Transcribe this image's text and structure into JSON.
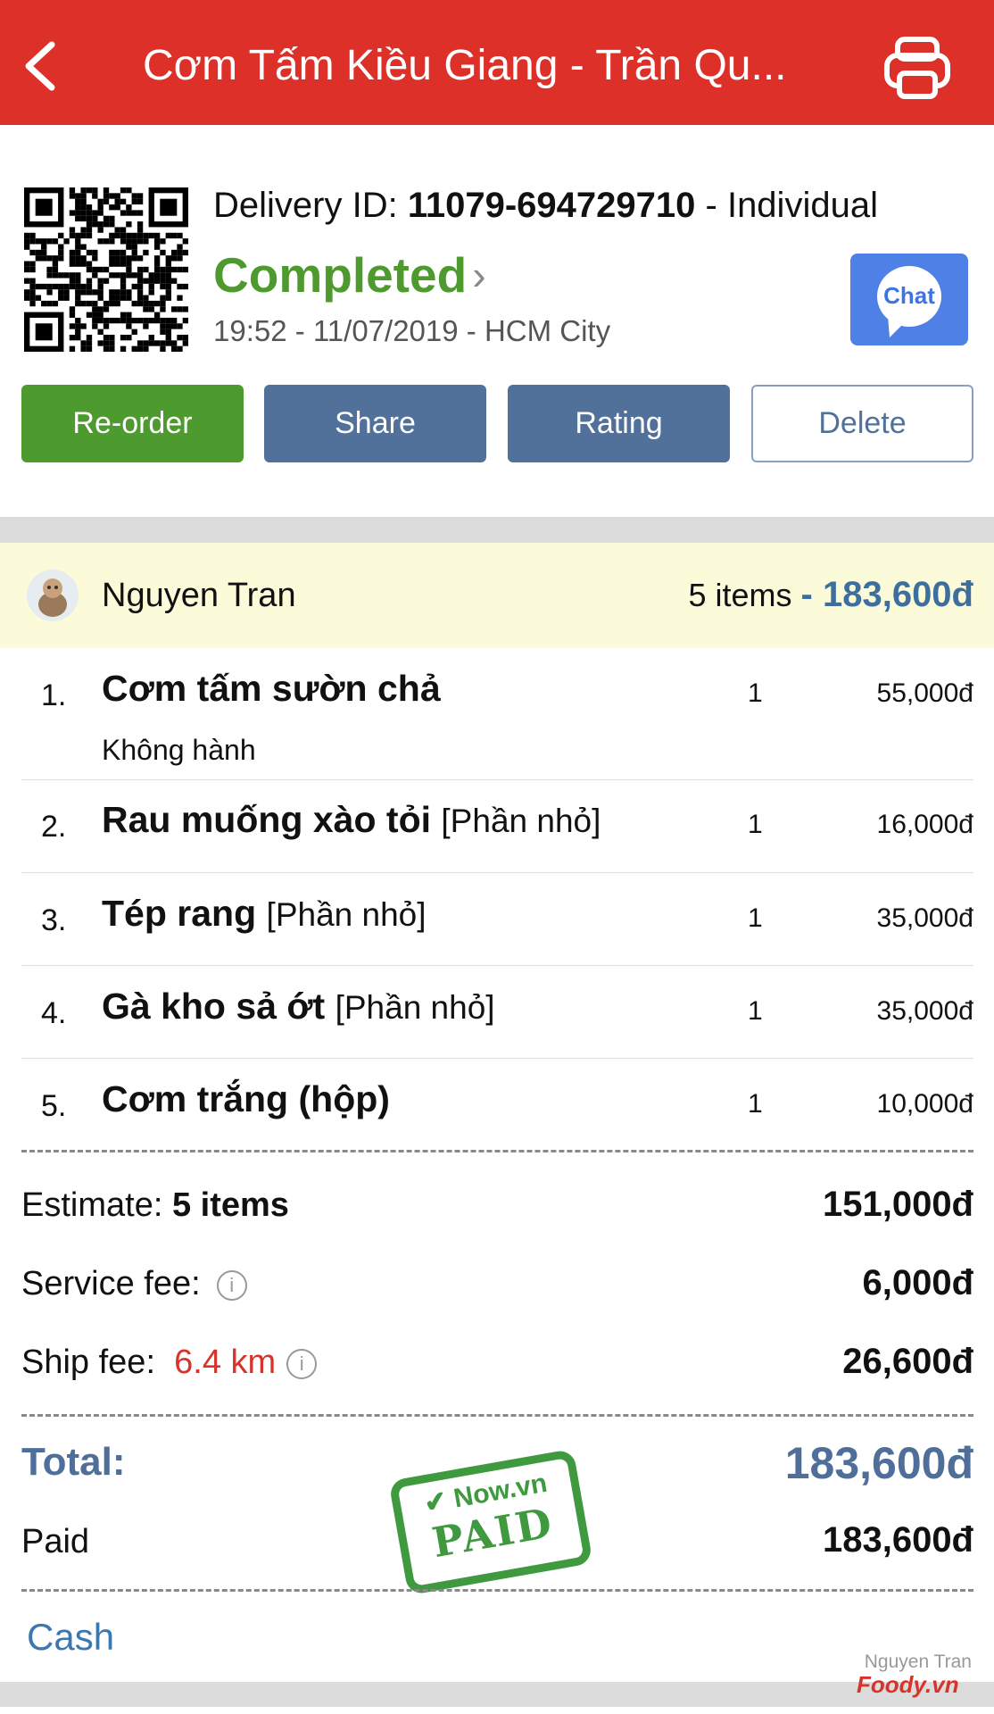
{
  "header": {
    "title": "Cơm Tấm Kiều Giang - Trần Qu...",
    "back_icon": "chevron-left-icon",
    "print_icon": "printer-icon",
    "color": "#dd3029"
  },
  "order": {
    "delivery_label": "Delivery ID:",
    "delivery_id": "11079-694729710",
    "type": "- Individual",
    "status": "Completed",
    "time_place": "19:52 - 11/07/2019 - HCM City",
    "chat_label": "Chat"
  },
  "actions": {
    "reorder": "Re-order",
    "share": "Share",
    "rating": "Rating",
    "delete": "Delete"
  },
  "user": {
    "name": "Nguyen Tran",
    "count": "5 items",
    "total": "- 183,600đ"
  },
  "items": [
    {
      "num": "1.",
      "name": "Cơm tấm sườn chả",
      "option": "",
      "note": "Không hành",
      "qty": "1",
      "price": "55,000đ"
    },
    {
      "num": "2.",
      "name": "Rau muống xào tỏi",
      "option": "[Phần nhỏ]",
      "qty": "1",
      "price": "16,000đ"
    },
    {
      "num": "3.",
      "name": "Tép rang",
      "option": "[Phần nhỏ]",
      "qty": "1",
      "price": "35,000đ"
    },
    {
      "num": "4.",
      "name": "Gà kho sả ớt",
      "option": "[Phần nhỏ]",
      "qty": "1",
      "price": "35,000đ"
    },
    {
      "num": "5.",
      "name": "Cơm trắng (hộp)",
      "option": "",
      "qty": "1",
      "price": "10,000đ"
    }
  ],
  "summary": {
    "estimate_label": "Estimate:",
    "estimate_count": "5 items",
    "estimate_value": "151,000đ",
    "service_label": "Service fee:",
    "service_value": "6,000đ",
    "ship_label": "Ship fee:",
    "ship_distance": "6.4 km",
    "ship_value": "26,600đ",
    "total_label": "Total:",
    "total_value": "183,600đ",
    "paid_label": "Paid",
    "paid_value": "183,600đ",
    "method": "Cash"
  },
  "stamp": {
    "brand": "Now.vn",
    "text": "PAID"
  },
  "watermark": {
    "user": "Nguyen Tran",
    "brand": "Foody.vn"
  }
}
